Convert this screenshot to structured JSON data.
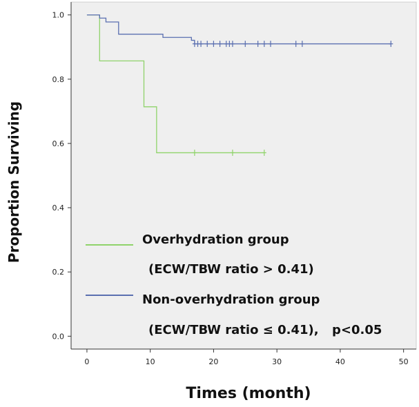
{
  "chart_data": {
    "type": "line",
    "subtype": "kaplan-meier",
    "title": "",
    "xlabel": "Times (month)",
    "ylabel": "Proportion Surviving",
    "xlim": [
      -2.5,
      52
    ],
    "ylim": [
      -0.04,
      1.04
    ],
    "xticks": [
      0,
      10,
      20,
      30,
      40,
      50
    ],
    "yticks": [
      0.0,
      0.2,
      0.4,
      0.6,
      0.8,
      1.0
    ],
    "ytick_labels": [
      "0.0",
      "0.2",
      "0.4",
      "0.6",
      "0.8",
      "1.0"
    ],
    "grid": false,
    "background": "#efefef",
    "legend_placement": "inside lower-left",
    "series": [
      {
        "name": "Overhydration group",
        "label_line2": "(ECW/TBW ratio > 0.41)",
        "color": "#8fd36a",
        "steps": [
          [
            0,
            1.0
          ],
          [
            2,
            0.857
          ],
          [
            9,
            0.714
          ],
          [
            11,
            0.571
          ],
          [
            28,
            0.571
          ]
        ],
        "censored": [
          17,
          23,
          28
        ]
      },
      {
        "name": "Non-overhydration group",
        "label_line2": "(ECW/TBW ratio ≤ 0.41),",
        "annotation": "p<0.05",
        "color": "#5a6fb0",
        "steps": [
          [
            0,
            1.0
          ],
          [
            2,
            0.99
          ],
          [
            3,
            0.978
          ],
          [
            5,
            0.94
          ],
          [
            12,
            0.93
          ],
          [
            16.5,
            0.921
          ],
          [
            17,
            0.91
          ],
          [
            48,
            0.91
          ]
        ],
        "censored": [
          17,
          17.5,
          18,
          19,
          20,
          21,
          22,
          22.5,
          23,
          25,
          27,
          28,
          29,
          33,
          34,
          48
        ]
      }
    ]
  }
}
